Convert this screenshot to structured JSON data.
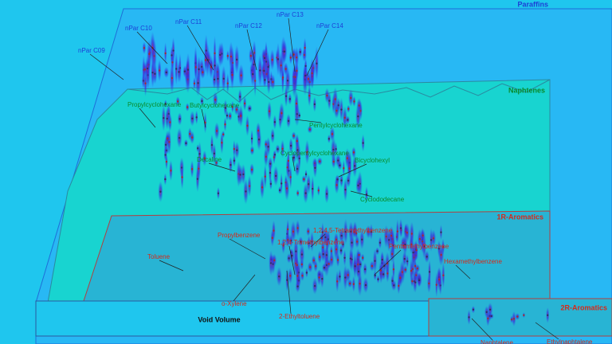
{
  "regions": {
    "paraffins": "Paraffins",
    "naphtenes": "Naphtenes",
    "aromatics_1r": "1R-Aromatics",
    "aromatics_2r": "2R-Aromatics",
    "void": "Void Volume"
  },
  "paraffins": [
    "nPar C09",
    "nPar C10",
    "nPar C11",
    "nPar C12",
    "nPar C13",
    "nPar C14"
  ],
  "naphtenes": [
    "Propylcyclohexane",
    "Butylcyclohexane",
    "Pentylcyclohexane",
    "Decaline",
    "Cyclopentylcyclohexane",
    "Bicyclohexyl",
    "Cyclododecane"
  ],
  "aromatics_1r": [
    "Toluene",
    "Propylbenzene",
    "1,2,4,5-Tetramethylbenzene",
    "1,2,4-Trimethylbenzene",
    "Pentamethylbenzene",
    "Hexamethylbenzene",
    "o-Xylene",
    "2-Ethyltoluene"
  ],
  "aromatics_2r": [
    "Naphtalene",
    "Ethylnaphtalene"
  ]
}
